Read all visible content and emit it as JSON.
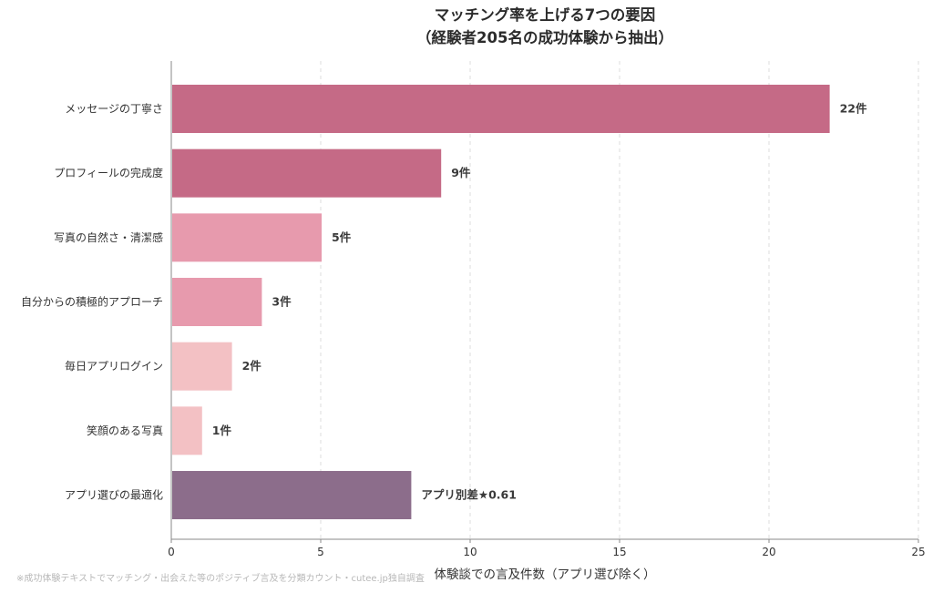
{
  "chart_data": {
    "type": "bar",
    "orientation": "horizontal",
    "title": "マッチング率を上げる7つの要因",
    "subtitle": "（経験者205名の成功体験から抽出）",
    "xlabel": "体験談での言及件数（アプリ選び除く）",
    "ylabel": "",
    "xlim": [
      0,
      25
    ],
    "xticks": [
      0,
      5,
      10,
      15,
      20,
      25
    ],
    "grid": "x-dashed",
    "categories": [
      "メッセージの丁寧さ",
      "プロフィールの完成度",
      "写真の自然さ・清潔感",
      "自分からの積極的アプローチ",
      "毎日アプリログイン",
      "笑顔のある写真",
      "アプリ選びの最適化"
    ],
    "values": [
      22,
      9,
      5,
      3,
      2,
      1,
      8
    ],
    "value_labels": [
      "22件",
      "9件",
      "5件",
      "3件",
      "2件",
      "1件",
      "アプリ別差★0.61"
    ],
    "colors": [
      "#c56a86",
      "#c56a86",
      "#e79aad",
      "#e79aad",
      "#f3c1c4",
      "#f3c1c4",
      "#8c6d8b"
    ],
    "footnote": "※成功体験テキストでマッチング・出会えた等のポジティブ言及を分類カウント・cutee.jp独自調査"
  }
}
